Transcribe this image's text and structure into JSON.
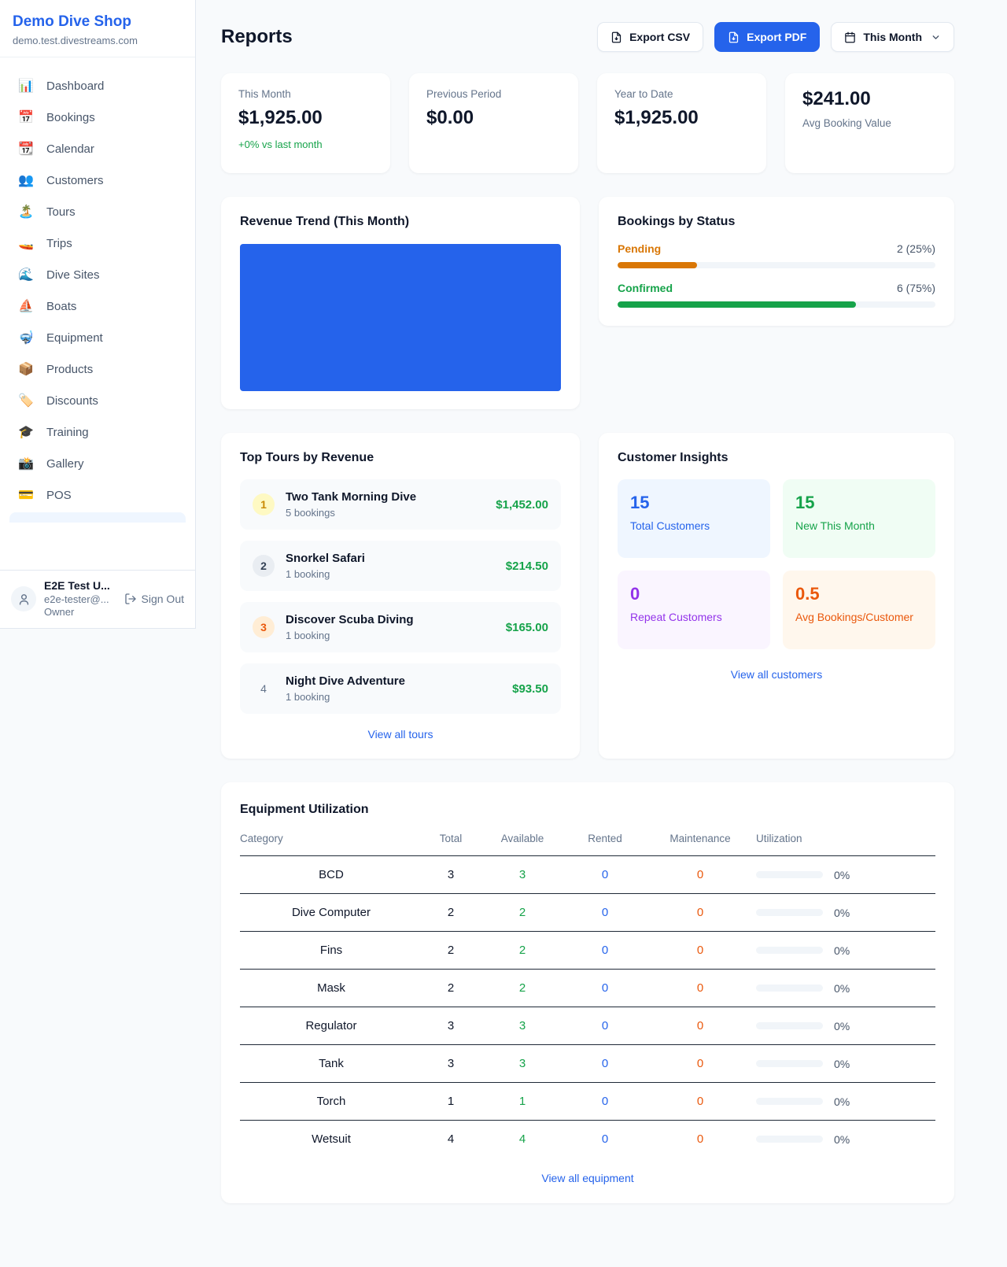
{
  "theme": {
    "accent_blue": "#2563eb",
    "green": "#16a34a",
    "orange_pending": "#d97706",
    "orange_maintenance": "#ea580c",
    "purple": "#9333ea",
    "page_bg": "#f8fafc"
  },
  "sidebar": {
    "shop_name": "Demo Dive Shop",
    "domain": "demo.test.divestreams.com",
    "items": [
      {
        "icon": "📊",
        "label": "Dashboard"
      },
      {
        "icon": "📅",
        "label": "Bookings"
      },
      {
        "icon": "📆",
        "label": "Calendar"
      },
      {
        "icon": "👥",
        "label": "Customers"
      },
      {
        "icon": "🏝️",
        "label": "Tours"
      },
      {
        "icon": "🚤",
        "label": "Trips"
      },
      {
        "icon": "🌊",
        "label": "Dive Sites"
      },
      {
        "icon": "⛵",
        "label": "Boats"
      },
      {
        "icon": "🤿",
        "label": "Equipment"
      },
      {
        "icon": "📦",
        "label": "Products"
      },
      {
        "icon": "🏷️",
        "label": "Discounts"
      },
      {
        "icon": "🎓",
        "label": "Training"
      },
      {
        "icon": "📸",
        "label": "Gallery"
      },
      {
        "icon": "💳",
        "label": "POS"
      }
    ],
    "user": {
      "name": "E2E Test U...",
      "email": "e2e-tester@...",
      "role": "Owner",
      "signout_label": "Sign Out"
    }
  },
  "header": {
    "title": "Reports",
    "export_csv_label": "Export CSV",
    "export_pdf_label": "Export PDF",
    "period_label": "This Month"
  },
  "stats": [
    {
      "label": "This Month",
      "value": "$1,925.00",
      "delta": "+0% vs last month"
    },
    {
      "label": "Previous Period",
      "value": "$0.00"
    },
    {
      "label": "Year to Date",
      "value": "$1,925.00"
    },
    {
      "label": "Avg Booking Value",
      "value": "$241.00"
    }
  ],
  "revenue_trend": {
    "title": "Revenue Trend (This Month)",
    "bar_color": "#2563eb"
  },
  "bookings_by_status": {
    "title": "Bookings by Status",
    "statuses": [
      {
        "label": "Pending",
        "value": "2 (25%)",
        "pct": "25%"
      },
      {
        "label": "Confirmed",
        "value": "6 (75%)",
        "pct": "75%"
      }
    ]
  },
  "top_tours": {
    "title": "Top Tours by Revenue",
    "items": [
      {
        "rank": "1",
        "name": "Two Tank Morning Dive",
        "bookings": "5 bookings",
        "revenue": "$1,452.00"
      },
      {
        "rank": "2",
        "name": "Snorkel Safari",
        "bookings": "1 booking",
        "revenue": "$214.50"
      },
      {
        "rank": "3",
        "name": "Discover Scuba Diving",
        "bookings": "1 booking",
        "revenue": "$165.00"
      },
      {
        "rank": "4",
        "name": "Night Dive Adventure",
        "bookings": "1 booking",
        "revenue": "$93.50"
      }
    ],
    "view_all_label": "View all tours"
  },
  "customer_insights": {
    "title": "Customer Insights",
    "tiles": [
      {
        "value": "15",
        "label": "Total Customers"
      },
      {
        "value": "15",
        "label": "New This Month"
      },
      {
        "value": "0",
        "label": "Repeat Customers"
      },
      {
        "value": "0.5",
        "label": "Avg Bookings/Customer"
      }
    ],
    "view_all_label": "View all customers"
  },
  "equipment": {
    "title": "Equipment Utilization",
    "columns": [
      "Category",
      "Total",
      "Available",
      "Rented",
      "Maintenance",
      "Utilization"
    ],
    "rows": [
      {
        "category": "BCD",
        "total": "3",
        "available": "3",
        "rented": "0",
        "maintenance": "0",
        "utilization": "0%"
      },
      {
        "category": "Dive Computer",
        "total": "2",
        "available": "2",
        "rented": "0",
        "maintenance": "0",
        "utilization": "0%"
      },
      {
        "category": "Fins",
        "total": "2",
        "available": "2",
        "rented": "0",
        "maintenance": "0",
        "utilization": "0%"
      },
      {
        "category": "Mask",
        "total": "2",
        "available": "2",
        "rented": "0",
        "maintenance": "0",
        "utilization": "0%"
      },
      {
        "category": "Regulator",
        "total": "3",
        "available": "3",
        "rented": "0",
        "maintenance": "0",
        "utilization": "0%"
      },
      {
        "category": "Tank",
        "total": "3",
        "available": "3",
        "rented": "0",
        "maintenance": "0",
        "utilization": "0%"
      },
      {
        "category": "Torch",
        "total": "1",
        "available": "1",
        "rented": "0",
        "maintenance": "0",
        "utilization": "0%"
      },
      {
        "category": "Wetsuit",
        "total": "4",
        "available": "4",
        "rented": "0",
        "maintenance": "0",
        "utilization": "0%"
      }
    ],
    "view_all_label": "View all equipment"
  }
}
